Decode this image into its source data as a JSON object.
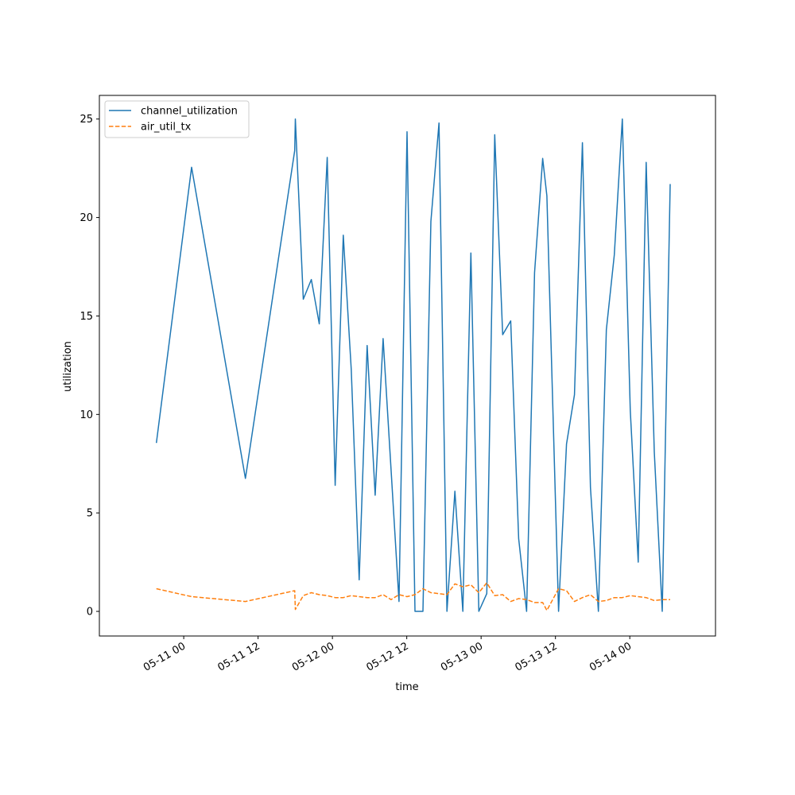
{
  "chart_data": {
    "type": "line",
    "title": "",
    "xlabel": "time",
    "ylabel": "utilization",
    "x_axis_type": "datetime",
    "xlim": [
      "2025-05-10T10:23:00",
      "2025-05-14T13:50:00"
    ],
    "ylim": [
      -1.25,
      26.2
    ],
    "x_ticks": [
      {
        "value": "2025-05-11T00:00:00",
        "label": "05-11 00"
      },
      {
        "value": "2025-05-11T12:00:00",
        "label": "05-11 12"
      },
      {
        "value": "2025-05-12T00:00:00",
        "label": "05-12 00"
      },
      {
        "value": "2025-05-12T12:00:00",
        "label": "05-12 12"
      },
      {
        "value": "2025-05-13T00:00:00",
        "label": "05-13 00"
      },
      {
        "value": "2025-05-13T12:00:00",
        "label": "05-13 12"
      },
      {
        "value": "2025-05-14T00:00:00",
        "label": "05-14 00"
      }
    ],
    "y_ticks": [
      {
        "value": 0,
        "label": "0"
      },
      {
        "value": 5,
        "label": "5"
      },
      {
        "value": 10,
        "label": "10"
      },
      {
        "value": 15,
        "label": "15"
      },
      {
        "value": 20,
        "label": "20"
      },
      {
        "value": 25,
        "label": "25"
      }
    ],
    "grid": false,
    "legend_position": "top-left",
    "x": [
      "2025-05-10T19:35:00",
      "2025-05-11T01:16:00",
      "2025-05-11T09:57:00",
      "2025-05-11T17:55:00",
      "2025-05-11T18:01:00",
      "2025-05-11T19:18:00",
      "2025-05-11T20:36:00",
      "2025-05-11T21:53:00",
      "2025-05-11T23:10:00",
      "2025-05-12T00:27:00",
      "2025-05-12T01:45:00",
      "2025-05-12T03:02:00",
      "2025-05-12T04:19:00",
      "2025-05-12T05:36:00",
      "2025-05-12T06:54:00",
      "2025-05-12T08:11:00",
      "2025-05-12T09:28:00",
      "2025-05-12T10:45:00",
      "2025-05-12T12:03:00",
      "2025-05-12T13:20:00",
      "2025-05-12T14:37:00",
      "2025-05-12T15:54:00",
      "2025-05-12T17:12:00",
      "2025-05-12T18:29:00",
      "2025-05-12T19:46:00",
      "2025-05-12T21:03:00",
      "2025-05-12T22:21:00",
      "2025-05-12T23:38:00",
      "2025-05-13T00:55:00",
      "2025-05-13T02:12:00",
      "2025-05-13T03:29:00",
      "2025-05-13T04:47:00",
      "2025-05-13T06:04:00",
      "2025-05-13T07:21:00",
      "2025-05-13T08:38:00",
      "2025-05-13T09:56:00",
      "2025-05-13T10:37:00",
      "2025-05-13T12:30:00",
      "2025-05-13T13:47:00",
      "2025-05-13T15:04:00",
      "2025-05-13T16:21:00",
      "2025-05-13T17:39:00",
      "2025-05-13T18:56:00",
      "2025-05-13T20:13:00",
      "2025-05-13T21:30:00",
      "2025-05-13T22:48:00",
      "2025-05-14T00:05:00",
      "2025-05-14T01:22:00",
      "2025-05-14T02:39:00",
      "2025-05-14T03:57:00",
      "2025-05-14T05:14:00",
      "2025-05-14T06:31:00"
    ],
    "series": [
      {
        "name": "channel_utilization",
        "color": "#1f77b4",
        "line_style": "solid",
        "values": [
          8.55,
          22.55,
          6.75,
          23.4,
          25.0,
          15.85,
          16.85,
          14.6,
          23.05,
          6.4,
          19.1,
          12.3,
          1.6,
          13.5,
          5.9,
          13.85,
          7.2,
          0.5,
          24.35,
          0.0,
          0.0,
          19.8,
          24.8,
          0.0,
          6.1,
          0.0,
          18.2,
          0.0,
          0.9,
          24.2,
          14.05,
          14.75,
          3.7,
          0.0,
          17.2,
          23.0,
          21.1,
          0.0,
          8.5,
          11.0,
          23.8,
          6.3,
          0.0,
          14.3,
          18.1,
          25.0,
          10.2,
          2.5,
          22.8,
          8.1,
          0.0,
          21.7
        ]
      },
      {
        "name": "air_util_tx",
        "color": "#ff7f0e",
        "line_style": "dashed",
        "values": [
          1.15,
          0.75,
          0.5,
          1.05,
          0.1,
          0.8,
          0.95,
          0.85,
          0.8,
          0.7,
          0.7,
          0.8,
          0.75,
          0.7,
          0.7,
          0.85,
          0.6,
          0.85,
          0.75,
          0.85,
          1.15,
          0.95,
          0.9,
          0.85,
          1.4,
          1.25,
          1.35,
          0.95,
          1.45,
          0.8,
          0.85,
          0.5,
          0.65,
          0.6,
          0.45,
          0.45,
          0.05,
          1.15,
          1.05,
          0.5,
          0.7,
          0.85,
          0.5,
          0.55,
          0.7,
          0.7,
          0.8,
          0.75,
          0.7,
          0.55,
          0.6,
          0.6
        ]
      }
    ]
  }
}
